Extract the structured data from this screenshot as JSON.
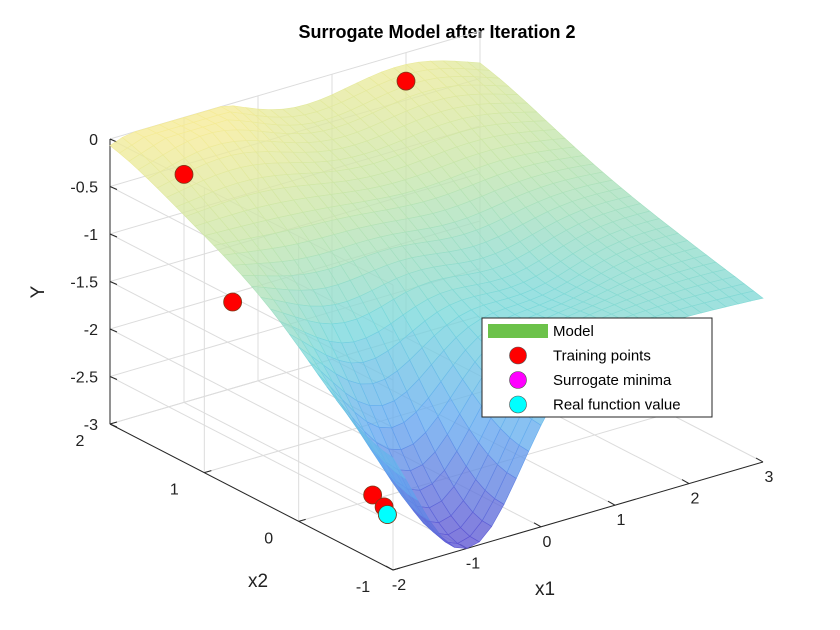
{
  "chart_data": {
    "type": "surface3d",
    "title": "Surrogate Model after Iteration 2",
    "xlabel": "x1",
    "ylabel": "x2",
    "zlabel": "Y",
    "xlim": [
      -2,
      3
    ],
    "ylim": [
      -1,
      2
    ],
    "zlim": [
      -3,
      0
    ],
    "x_ticks": [
      "-2",
      "-1",
      "0",
      "1",
      "2",
      "3"
    ],
    "y_ticks": [
      "-1",
      "0",
      "1",
      "2"
    ],
    "z_ticks": [
      "-3",
      "-2.5",
      "-2",
      "-1.5",
      "-1",
      "-0.5",
      "0"
    ],
    "grid": true,
    "legend_position": "right",
    "legend": [
      {
        "label": "Model",
        "color": "#6cc24a",
        "marker": "patch"
      },
      {
        "label": "Training points",
        "color": "#ff0000",
        "marker": "circle"
      },
      {
        "label": "Surrogate minima",
        "color": "#ff00ff",
        "marker": "circle"
      },
      {
        "label": "Real function value",
        "color": "#00ffff",
        "marker": "circle"
      }
    ],
    "series": [
      {
        "name": "Training points",
        "color": "#ff0000",
        "points": [
          {
            "x": -1.0,
            "y": 2.0,
            "z": -0.6
          },
          {
            "x": 2.0,
            "y": 2.0,
            "z": -0.3
          },
          {
            "x": -2.0,
            "y": 0.7,
            "z": -1.05
          },
          {
            "x": 1.0,
            "y": 0.0,
            "z": -1.85
          },
          {
            "x": -1.0,
            "y": 0.0,
            "z": -2.95
          },
          {
            "x": -1.1,
            "y": -0.2,
            "z": -2.95
          }
        ]
      },
      {
        "name": "Surrogate minima",
        "color": "#ff00ff",
        "points": [
          {
            "x": -1.12,
            "y": -0.25,
            "z": -3.0
          }
        ]
      },
      {
        "name": "Real function value",
        "color": "#00ffff",
        "points": [
          {
            "x": -1.12,
            "y": -0.25,
            "z": -3.0
          }
        ]
      }
    ]
  }
}
